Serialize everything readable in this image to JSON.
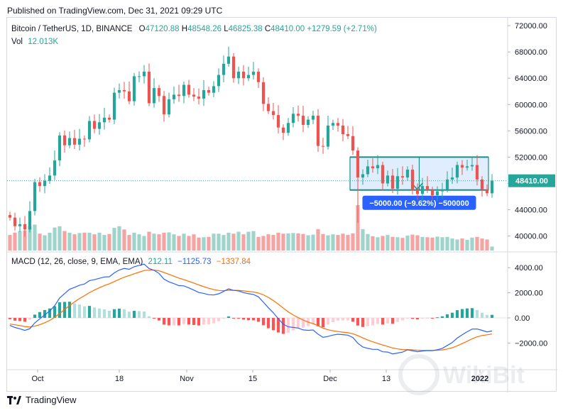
{
  "published": "Published on TradingView.com, Dec 31, 2021 09:29 UTC",
  "footer_brand": "TradingView",
  "watermark": "WikiBit",
  "legend": {
    "symbol": "Bitcoin / TetherUS, 1D, BINANCE",
    "o_label": "O",
    "o": "47120.88",
    "h_label": "H",
    "h": "48548.26",
    "l_label": "L",
    "l": "46825.38",
    "c_label": "C",
    "c": "48410.00",
    "change": "+1279.59 (+2.71%)",
    "vol_label": "Vol",
    "vol": "12.013K",
    "macd_label": "MACD (12, 26, close, 9, EMA, EMA)",
    "macd_hist": "212.11",
    "macd": "−1125.73",
    "macd_signal": "−1337.84"
  },
  "price_badge": "48410.00",
  "measure_label": "−5000.00 (−9.62%) −500000",
  "colors": {
    "up": "#26a69a",
    "down": "#ef5350",
    "vol_up": "#9fd4cc",
    "vol_down": "#f3a4a3",
    "macd": "#2962ff",
    "signal": "#ff6d00",
    "hist_up_strong": "#26a69a",
    "hist_up_weak": "#b2dfdb",
    "hist_down_strong": "#ff5252",
    "hist_down_weak": "#ffcdd2",
    "measure_fill": "#d6e7fb",
    "measure_border": "#1b8f86",
    "label_bg": "#2962ff"
  },
  "chart_data": [
    {
      "type": "candlestick",
      "title": "Bitcoin / TetherUS, 1D, BINANCE",
      "x_tick_labels": [
        "Oct",
        "18",
        "Nov",
        "15",
        "Dec",
        "13",
        "2022"
      ],
      "y_tick_labels": [
        "72000.00",
        "68000.00",
        "64000.00",
        "60000.00",
        "56000.00",
        "52000.00",
        "48000.00",
        "44000.00",
        "40000.00"
      ],
      "ylim": [
        37800,
        73200
      ],
      "last_price": 48410.0,
      "measure_box": {
        "from": 52000,
        "to": 47000
      },
      "close": [
        42800,
        41500,
        41800,
        41000,
        43800,
        48200,
        47600,
        48400,
        49200,
        51500,
        55300,
        53800,
        54900,
        53900,
        54800,
        54700,
        57500,
        56300,
        57300,
        58000,
        57700,
        61800,
        62200,
        62000,
        60500,
        64300,
        64300,
        65000,
        60200,
        62500,
        61300,
        58500,
        60800,
        61500,
        61300,
        63000,
        61500,
        61200,
        60900,
        62200,
        61800,
        62800,
        64500,
        66200,
        67300,
        64000,
        65000,
        64000,
        64500,
        65000,
        63400,
        60100,
        59000,
        58400,
        56500,
        55700,
        57200,
        58600,
        58300,
        56900,
        57700,
        58300,
        53700,
        53600,
        56800,
        57200,
        56800,
        55500,
        55200,
        53000,
        48900,
        49400,
        50600,
        50300,
        50800,
        48000,
        49200,
        47200,
        49100,
        48900,
        50100,
        47000,
        46400,
        47600,
        47000,
        46200,
        46800,
        47100,
        48600,
        48900,
        50800,
        50400,
        50600,
        50800,
        48600,
        47100,
        46500,
        48410
      ],
      "volume_k": [
        48,
        55,
        60,
        62,
        75,
        80,
        52,
        47,
        55,
        71,
        75,
        60,
        55,
        50,
        54,
        55,
        55,
        50,
        55,
        48,
        51,
        70,
        75,
        65,
        48,
        55,
        50,
        45,
        58,
        52,
        50,
        55,
        56,
        50,
        45,
        52,
        45,
        50,
        40,
        41,
        42,
        52,
        52,
        48,
        55,
        52,
        58,
        50,
        58,
        60,
        42,
        45,
        50,
        48,
        55,
        52,
        53,
        54,
        53,
        51,
        47,
        49,
        66,
        51,
        47,
        50,
        48,
        52,
        48,
        53,
        140,
        66,
        51,
        44,
        41,
        45,
        48,
        42,
        41,
        39,
        46,
        49,
        47,
        42,
        41,
        40,
        43,
        41,
        42,
        37,
        34,
        37,
        33,
        40,
        42,
        37,
        34,
        12
      ]
    },
    {
      "type": "macd",
      "title": "MACD (12, 26, close, 9, EMA, EMA)",
      "y_tick_labels": [
        "4000.00",
        "2000.00",
        "0.00",
        "−2000.00"
      ],
      "ylim": [
        -3900,
        4800
      ],
      "histogram_last": 212.11,
      "macd_last": -1125.73,
      "signal_last": -1337.84
    }
  ]
}
